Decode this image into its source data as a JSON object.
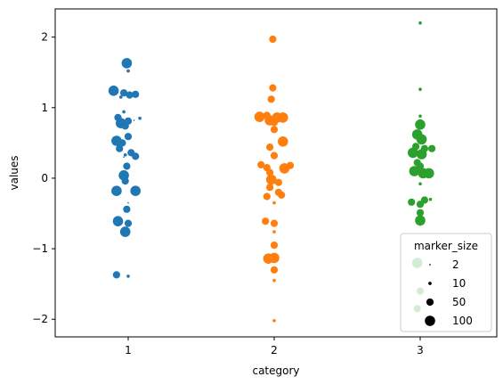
{
  "chart_data": {
    "type": "scatter",
    "title": "",
    "xlabel": "category",
    "ylabel": "values",
    "categories": [
      "1",
      "2",
      "3"
    ],
    "ylim": [
      -2.25,
      2.4
    ],
    "yticks": [
      -2,
      -1,
      0,
      1,
      2
    ],
    "ytick_labels": [
      "−2",
      "−1",
      "0",
      "1",
      "2"
    ],
    "grid": false,
    "colors": {
      "1": "#1f77b4",
      "2": "#ff7f0e",
      "3": "#2ca02c"
    },
    "series": [
      {
        "category": "1",
        "points": [
          {
            "jitter": -0.01,
            "y": 1.63,
            "size": 100
          },
          {
            "jitter": 0.0,
            "y": 1.52,
            "size": 10
          },
          {
            "jitter": -0.1,
            "y": 1.24,
            "size": 100
          },
          {
            "jitter": -0.03,
            "y": 1.21,
            "size": 50
          },
          {
            "jitter": 0.01,
            "y": 1.18,
            "size": 50
          },
          {
            "jitter": 0.05,
            "y": 1.19,
            "size": 50
          },
          {
            "jitter": -0.05,
            "y": 1.15,
            "size": 10
          },
          {
            "jitter": -0.03,
            "y": 0.94,
            "size": 10
          },
          {
            "jitter": -0.07,
            "y": 0.86,
            "size": 50
          },
          {
            "jitter": -0.05,
            "y": 0.78,
            "size": 100
          },
          {
            "jitter": 0.0,
            "y": 0.81,
            "size": 50
          },
          {
            "jitter": 0.04,
            "y": 0.82,
            "size": 2
          },
          {
            "jitter": 0.08,
            "y": 0.85,
            "size": 10
          },
          {
            "jitter": -0.02,
            "y": 0.74,
            "size": 50
          },
          {
            "jitter": 0.0,
            "y": 0.59,
            "size": 50
          },
          {
            "jitter": -0.08,
            "y": 0.53,
            "size": 100
          },
          {
            "jitter": -0.04,
            "y": 0.5,
            "size": 50
          },
          {
            "jitter": -0.06,
            "y": 0.42,
            "size": 50
          },
          {
            "jitter": 0.02,
            "y": 0.36,
            "size": 50
          },
          {
            "jitter": 0.05,
            "y": 0.31,
            "size": 50
          },
          {
            "jitter": -0.02,
            "y": 0.33,
            "size": 10
          },
          {
            "jitter": -0.03,
            "y": 0.3,
            "size": 2
          },
          {
            "jitter": -0.01,
            "y": 0.17,
            "size": 50
          },
          {
            "jitter": -0.03,
            "y": 0.04,
            "size": 100
          },
          {
            "jitter": -0.02,
            "y": -0.04,
            "size": 50
          },
          {
            "jitter": -0.08,
            "y": -0.18,
            "size": 100
          },
          {
            "jitter": 0.05,
            "y": -0.18,
            "size": 100
          },
          {
            "jitter": 0.0,
            "y": -0.35,
            "size": 2
          },
          {
            "jitter": -0.01,
            "y": -0.44,
            "size": 50
          },
          {
            "jitter": -0.07,
            "y": -0.61,
            "size": 100
          },
          {
            "jitter": 0.0,
            "y": -0.64,
            "size": 50
          },
          {
            "jitter": -0.02,
            "y": -0.76,
            "size": 100
          },
          {
            "jitter": -0.08,
            "y": -1.37,
            "size": 50
          },
          {
            "jitter": 0.0,
            "y": -1.39,
            "size": 10
          }
        ]
      },
      {
        "category": "2",
        "points": [
          {
            "jitter": -0.01,
            "y": 1.97,
            "size": 50
          },
          {
            "jitter": -0.01,
            "y": 1.28,
            "size": 50
          },
          {
            "jitter": -0.02,
            "y": 1.12,
            "size": 50
          },
          {
            "jitter": -0.05,
            "y": 0.89,
            "size": 50
          },
          {
            "jitter": -0.1,
            "y": 0.87,
            "size": 100
          },
          {
            "jitter": 0.02,
            "y": 0.86,
            "size": 100
          },
          {
            "jitter": 0.06,
            "y": 0.86,
            "size": 100
          },
          {
            "jitter": -0.03,
            "y": 0.82,
            "size": 100
          },
          {
            "jitter": 0.0,
            "y": 0.79,
            "size": 50
          },
          {
            "jitter": 0.0,
            "y": 0.69,
            "size": 50
          },
          {
            "jitter": 0.06,
            "y": 0.52,
            "size": 100
          },
          {
            "jitter": -0.03,
            "y": 0.44,
            "size": 50
          },
          {
            "jitter": 0.0,
            "y": 0.32,
            "size": 50
          },
          {
            "jitter": -0.09,
            "y": 0.19,
            "size": 50
          },
          {
            "jitter": -0.05,
            "y": 0.15,
            "size": 50
          },
          {
            "jitter": 0.07,
            "y": 0.14,
            "size": 100
          },
          {
            "jitter": 0.11,
            "y": 0.18,
            "size": 50
          },
          {
            "jitter": -0.03,
            "y": 0.08,
            "size": 50
          },
          {
            "jitter": -0.02,
            "y": -0.02,
            "size": 100
          },
          {
            "jitter": 0.03,
            "y": -0.06,
            "size": 50
          },
          {
            "jitter": -0.03,
            "y": -0.13,
            "size": 50
          },
          {
            "jitter": 0.03,
            "y": -0.2,
            "size": 50
          },
          {
            "jitter": -0.05,
            "y": -0.26,
            "size": 50
          },
          {
            "jitter": 0.05,
            "y": -0.24,
            "size": 50
          },
          {
            "jitter": 0.0,
            "y": -0.35,
            "size": 10
          },
          {
            "jitter": -0.06,
            "y": -0.61,
            "size": 50
          },
          {
            "jitter": 0.0,
            "y": -0.64,
            "size": 50
          },
          {
            "jitter": 0.0,
            "y": -0.76,
            "size": 10
          },
          {
            "jitter": 0.0,
            "y": -0.95,
            "size": 50
          },
          {
            "jitter": 0.0,
            "y": -1.13,
            "size": 100
          },
          {
            "jitter": -0.04,
            "y": -1.14,
            "size": 100
          },
          {
            "jitter": 0.0,
            "y": -1.3,
            "size": 50
          },
          {
            "jitter": 0.0,
            "y": -1.45,
            "size": 10
          },
          {
            "jitter": 0.0,
            "y": -2.02,
            "size": 10
          }
        ]
      },
      {
        "category": "3",
        "points": [
          {
            "jitter": 0.0,
            "y": 2.2,
            "size": 10
          },
          {
            "jitter": 0.0,
            "y": 1.26,
            "size": 10
          },
          {
            "jitter": 0.0,
            "y": 0.88,
            "size": 10
          },
          {
            "jitter": 0.0,
            "y": 0.76,
            "size": 100
          },
          {
            "jitter": -0.02,
            "y": 0.62,
            "size": 100
          },
          {
            "jitter": 0.01,
            "y": 0.55,
            "size": 100
          },
          {
            "jitter": -0.03,
            "y": 0.45,
            "size": 50
          },
          {
            "jitter": 0.03,
            "y": 0.42,
            "size": 50
          },
          {
            "jitter": 0.08,
            "y": 0.42,
            "size": 50
          },
          {
            "jitter": -0.05,
            "y": 0.36,
            "size": 100
          },
          {
            "jitter": 0.01,
            "y": 0.34,
            "size": 100
          },
          {
            "jitter": -0.02,
            "y": 0.22,
            "size": 50
          },
          {
            "jitter": 0.0,
            "y": 0.17,
            "size": 50
          },
          {
            "jitter": -0.04,
            "y": 0.1,
            "size": 100
          },
          {
            "jitter": 0.02,
            "y": 0.07,
            "size": 100
          },
          {
            "jitter": 0.06,
            "y": 0.07,
            "size": 100
          },
          {
            "jitter": 0.0,
            "y": -0.08,
            "size": 10
          },
          {
            "jitter": -0.06,
            "y": -0.34,
            "size": 50
          },
          {
            "jitter": 0.0,
            "y": -0.37,
            "size": 50
          },
          {
            "jitter": 0.03,
            "y": -0.31,
            "size": 50
          },
          {
            "jitter": 0.07,
            "y": -0.3,
            "size": 10
          },
          {
            "jitter": 0.0,
            "y": -0.49,
            "size": 50
          },
          {
            "jitter": 0.0,
            "y": -0.6,
            "size": 100
          },
          {
            "jitter": -0.02,
            "y": -1.2,
            "size": 100
          },
          {
            "jitter": 0.0,
            "y": -1.6,
            "size": 50
          },
          {
            "jitter": -0.02,
            "y": -1.85,
            "size": 50
          }
        ]
      }
    ],
    "legend": {
      "title": "marker_size",
      "placement": "lower-right",
      "entries": [
        {
          "label": "2",
          "size": 2
        },
        {
          "label": "10",
          "size": 10
        },
        {
          "label": "50",
          "size": 50
        },
        {
          "label": "100",
          "size": 100
        }
      ]
    }
  }
}
